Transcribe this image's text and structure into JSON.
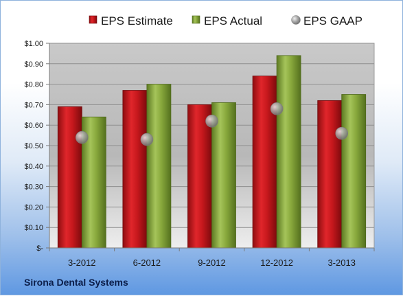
{
  "company_name": "Sirona Dental Systems",
  "chart_data": {
    "type": "bar",
    "categories": [
      "3-2012",
      "6-2012",
      "9-2012",
      "12-2012",
      "3-2013"
    ],
    "series": [
      {
        "name": "EPS Estimate",
        "kind": "bar",
        "color": "#c0151b",
        "values": [
          0.69,
          0.77,
          0.7,
          0.84,
          0.72
        ]
      },
      {
        "name": "EPS Actual",
        "kind": "bar",
        "color": "#86a53a",
        "values": [
          0.64,
          0.8,
          0.71,
          0.94,
          0.75
        ]
      },
      {
        "name": "EPS GAAP",
        "kind": "marker",
        "color": "#a8a8a8",
        "values": [
          0.54,
          0.53,
          0.62,
          0.68,
          0.56
        ]
      }
    ],
    "y_ticks": [
      "$-",
      "$0.10",
      "$0.20",
      "$0.30",
      "$0.40",
      "$0.50",
      "$0.60",
      "$0.70",
      "$0.80",
      "$0.90",
      "$1.00"
    ],
    "ylim": [
      0,
      1.0
    ],
    "grid": true,
    "legend_position": "top"
  }
}
